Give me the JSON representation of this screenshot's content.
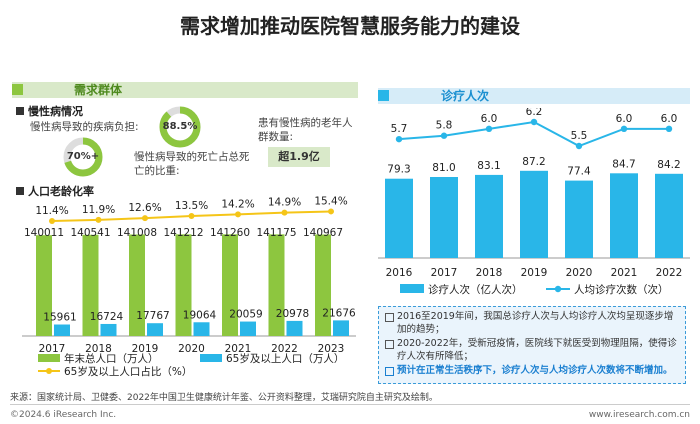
{
  "title": "需求增加推动医院智慧服务能力的建设",
  "left_section": {
    "label": "需求群体",
    "chronic": {
      "heading": "慢性病情况",
      "burden_label": "慢性病导致的疾病负担:",
      "burden_value": "70%+",
      "death_value": "88.5%",
      "death_label": "慢性病导致的死亡占总死亡的比重:",
      "elderly_label": "患有慢性病的老年人群数量:",
      "elderly_value": "超1.9亿"
    },
    "aging_heading": "人口老龄化率"
  },
  "right_section": {
    "label": "诊疗人次"
  },
  "colors": {
    "green": "#8dc63f",
    "light_green": "#d9e9c9",
    "blue": "#29b6e8",
    "yellow": "#f5c518",
    "gray_donut": "#dddddd"
  },
  "chart_data": [
    {
      "type": "bar",
      "categories": [
        "2017",
        "2018",
        "2019",
        "2020",
        "2021",
        "2022",
        "2023"
      ],
      "series": [
        {
          "name": "年末总人口（万人）",
          "values": [
            140011,
            140541,
            141008,
            141212,
            141260,
            141175,
            140967
          ]
        },
        {
          "name": "65岁及以上人口（万人）",
          "values": [
            15961,
            16724,
            17767,
            19064,
            20059,
            20978,
            21676
          ]
        },
        {
          "name": "65岁及以上人口占比（%）",
          "values": [
            11.4,
            11.9,
            12.6,
            13.5,
            14.2,
            14.9,
            15.4
          ]
        }
      ],
      "data_labels_pct": [
        "11.4%",
        "11.9%",
        "12.6%",
        "13.5%",
        "14.2%",
        "14.9%",
        "15.4%"
      ],
      "legend": [
        "年末总人口（万人）",
        "65岁及以上人口（万人）",
        "65岁及以上人口占比（%）"
      ],
      "ylim": [
        0,
        150000
      ]
    },
    {
      "type": "bar",
      "categories": [
        "2016",
        "2017",
        "2018",
        "2019",
        "2020",
        "2021",
        "2022"
      ],
      "series": [
        {
          "name": "诊疗人次（亿人次）",
          "values": [
            79.3,
            81.0,
            83.1,
            87.2,
            77.4,
            84.7,
            84.2
          ]
        },
        {
          "name": "人均诊疗次数（次）",
          "values": [
            5.7,
            5.8,
            6.0,
            6.2,
            5.5,
            6.0,
            6.0
          ]
        }
      ],
      "data_labels_visits": [
        "79.3",
        "81.0",
        "83.1",
        "87.2",
        "77.4",
        "84.7",
        "84.2"
      ],
      "data_labels_avg": [
        "5.7",
        "5.8",
        "6.0",
        "6.2",
        "5.5",
        "6.0",
        "6.0"
      ],
      "legend": [
        "诊疗人次（亿人次）",
        "人均诊疗次数（次）"
      ],
      "ylim": [
        0,
        100
      ]
    }
  ],
  "notes": [
    "2016至2019年间，我国总诊疗人次与人均诊疗人次均呈现逐步增加的趋势；",
    "2020-2022年，受新冠疫情，医院线下就医受到物理阻隔，使得诊疗人次有所降低；",
    "预计在正常生活秩序下，诊疗人次与人均诊疗人次数将不断增加。"
  ],
  "source": "来源：国家统计局、卫健委、2022年中国卫生健康统计年鉴、公开资料整理，艾瑞研究院自主研究及绘制。",
  "footer_left": "©2024.6 iResearch Inc.",
  "footer_right": "www.iresearch.com.cn"
}
